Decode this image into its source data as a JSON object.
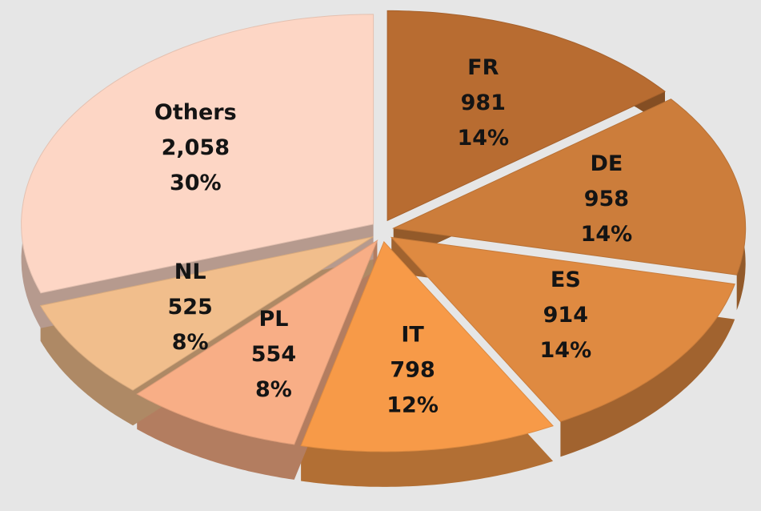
{
  "chart_data": {
    "type": "pie",
    "categories": [
      "FR",
      "DE",
      "ES",
      "IT",
      "PL",
      "NL",
      "Others"
    ],
    "values": [
      981,
      958,
      914,
      798,
      554,
      525,
      2058
    ],
    "value_labels": [
      "981",
      "958",
      "914",
      "798",
      "554",
      "525",
      "2,058"
    ],
    "percent_labels": [
      "14%",
      "14%",
      "14%",
      "12%",
      "8%",
      "8%",
      "30%"
    ],
    "colors": [
      "#b86c31",
      "#cc7d3b",
      "#df8a41",
      "#f79a48",
      "#f8ae86",
      "#f1be8c",
      "#fdd6c5"
    ]
  }
}
